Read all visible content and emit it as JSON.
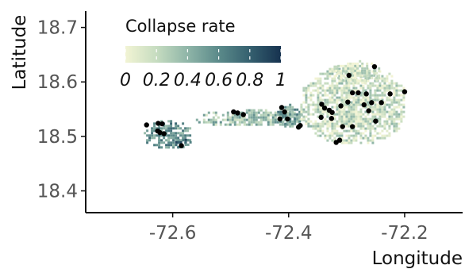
{
  "chart_data": {
    "type": "scatter",
    "title": "",
    "xlabel": "Longitude",
    "ylabel": "Latitude",
    "xlim": [
      -72.75,
      -72.1
    ],
    "ylim": [
      18.36,
      18.73
    ],
    "x_ticks": [
      -72.6,
      -72.4,
      -72.2
    ],
    "y_ticks": [
      18.4,
      18.5,
      18.6,
      18.7
    ],
    "x_tick_labels": [
      "-72.6",
      "-72.4",
      "-72.2"
    ],
    "y_tick_labels": [
      "18.4",
      "18.5",
      "18.6",
      "18.7"
    ],
    "legend": {
      "title": "Collapse rate",
      "placement": "top-left",
      "scale_min": 0,
      "scale_max": 1,
      "tick_labels": [
        "0",
        "0.2",
        "0.4",
        "0.6",
        "0.8",
        "1"
      ],
      "colors": [
        "#f2f4d4",
        "#c6dcc0",
        "#8fb5a8",
        "#5b8a8a",
        "#35606f",
        "#16324f"
      ]
    },
    "grid": false,
    "raster_regions": [
      {
        "name": "west",
        "lon": [
          -72.65,
          -72.57
        ],
        "lat": [
          18.48,
          18.53
        ],
        "rate": 0.55
      },
      {
        "name": "west-tip",
        "lon": [
          -72.6,
          -72.57
        ],
        "lat": [
          18.48,
          18.5
        ],
        "rate": 0.7
      },
      {
        "name": "central-strip",
        "lon": [
          -72.56,
          -72.37
        ],
        "lat": [
          18.52,
          18.55
        ],
        "rate": 0.35
      },
      {
        "name": "central-core",
        "lon": [
          -72.42,
          -72.38
        ],
        "lat": [
          18.52,
          18.56
        ],
        "rate": 0.5
      },
      {
        "name": "east",
        "lon": [
          -72.38,
          -72.2
        ],
        "lat": [
          18.49,
          18.63
        ],
        "rate": 0.18
      },
      {
        "name": "east-north",
        "lon": [
          -72.32,
          -72.24
        ],
        "lat": [
          18.6,
          18.64
        ],
        "rate": 0.12
      }
    ],
    "points": [
      {
        "x": -72.645,
        "y": 18.521
      },
      {
        "x": -72.625,
        "y": 18.524
      },
      {
        "x": -72.618,
        "y": 18.523
      },
      {
        "x": -72.626,
        "y": 18.51
      },
      {
        "x": -72.622,
        "y": 18.507
      },
      {
        "x": -72.615,
        "y": 18.505
      },
      {
        "x": -72.585,
        "y": 18.483
      },
      {
        "x": -72.495,
        "y": 18.545
      },
      {
        "x": -72.488,
        "y": 18.543
      },
      {
        "x": -72.478,
        "y": 18.54
      },
      {
        "x": -72.412,
        "y": 18.553
      },
      {
        "x": -72.407,
        "y": 18.545
      },
      {
        "x": -72.415,
        "y": 18.532
      },
      {
        "x": -72.402,
        "y": 18.532
      },
      {
        "x": -72.383,
        "y": 18.517
      },
      {
        "x": -72.38,
        "y": 18.52
      },
      {
        "x": -72.343,
        "y": 18.559
      },
      {
        "x": -72.338,
        "y": 18.552
      },
      {
        "x": -72.33,
        "y": 18.548
      },
      {
        "x": -72.325,
        "y": 18.544
      },
      {
        "x": -72.344,
        "y": 18.535
      },
      {
        "x": -72.326,
        "y": 18.533
      },
      {
        "x": -72.31,
        "y": 18.556
      },
      {
        "x": -72.298,
        "y": 18.563
      },
      {
        "x": -72.29,
        "y": 18.58
      },
      {
        "x": -72.28,
        "y": 18.58
      },
      {
        "x": -72.266,
        "y": 18.578
      },
      {
        "x": -72.296,
        "y": 18.612
      },
      {
        "x": -72.252,
        "y": 18.628
      },
      {
        "x": -72.27,
        "y": 18.558
      },
      {
        "x": -72.262,
        "y": 18.547
      },
      {
        "x": -72.257,
        "y": 18.562
      },
      {
        "x": -72.24,
        "y": 18.562
      },
      {
        "x": -72.225,
        "y": 18.578
      },
      {
        "x": -72.2,
        "y": 18.582
      },
      {
        "x": -72.307,
        "y": 18.518
      },
      {
        "x": -72.29,
        "y": 18.518
      },
      {
        "x": -72.25,
        "y": 18.528
      },
      {
        "x": -72.318,
        "y": 18.489
      },
      {
        "x": -72.312,
        "y": 18.493
      }
    ]
  }
}
